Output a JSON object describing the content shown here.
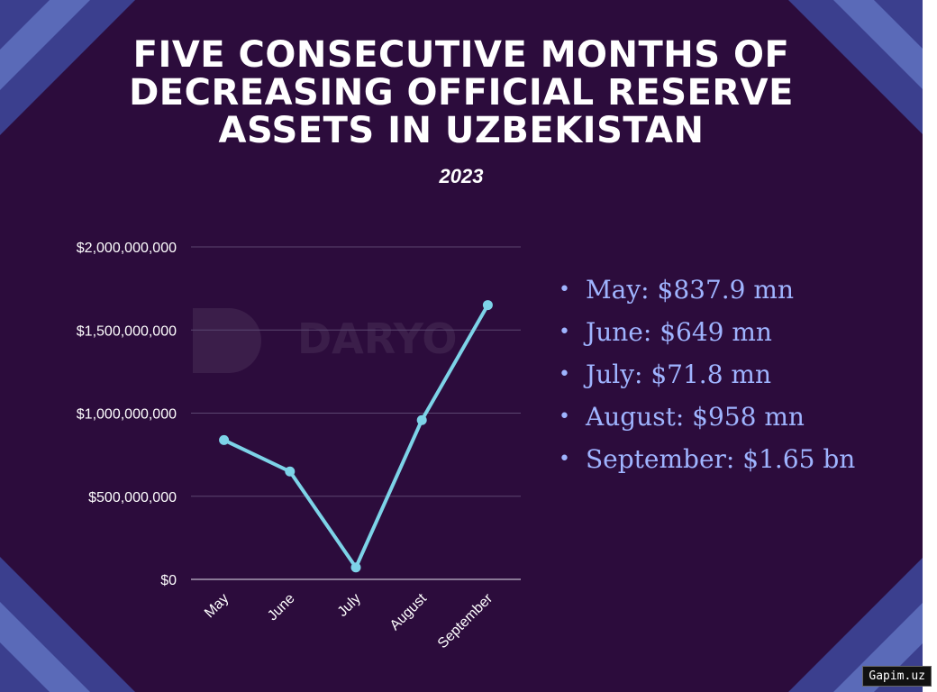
{
  "title_lines": [
    "FIVE CONSECUTIVE MONTHS OF",
    "DECREASING OFFICIAL RESERVE",
    "ASSETS IN UZBEKISTAN"
  ],
  "subtitle": "2023",
  "watermark_text": "DARYO",
  "badge": "Gapim.uz",
  "colors": {
    "background": "#2c0c3c",
    "line": "#7dd3e8",
    "legend_text": "#9fb4ff",
    "corner_stripe_a": "#5a6ab8",
    "corner_stripe_b": "#3b3f8e"
  },
  "legend_items": [
    "May: $837.9 mn",
    "June: $649 mn",
    "July: $71.8 mn",
    "August: $958 mn",
    "September: $1.65 bn"
  ],
  "chart_data": {
    "type": "line",
    "categories": [
      "May",
      "June",
      "July",
      "August",
      "September"
    ],
    "values": [
      837900000,
      649000000,
      71800000,
      958000000,
      1650000000
    ],
    "ylim": [
      0,
      2000000000
    ],
    "yticks": [
      0,
      500000000,
      1000000000,
      1500000000,
      2000000000
    ],
    "ytick_labels": [
      "$0",
      "$500,000,000",
      "$1,000,000,000",
      "$1,500,000,000",
      "$2,000,000,000"
    ],
    "grid": true,
    "xlabel": "",
    "ylabel": ""
  }
}
